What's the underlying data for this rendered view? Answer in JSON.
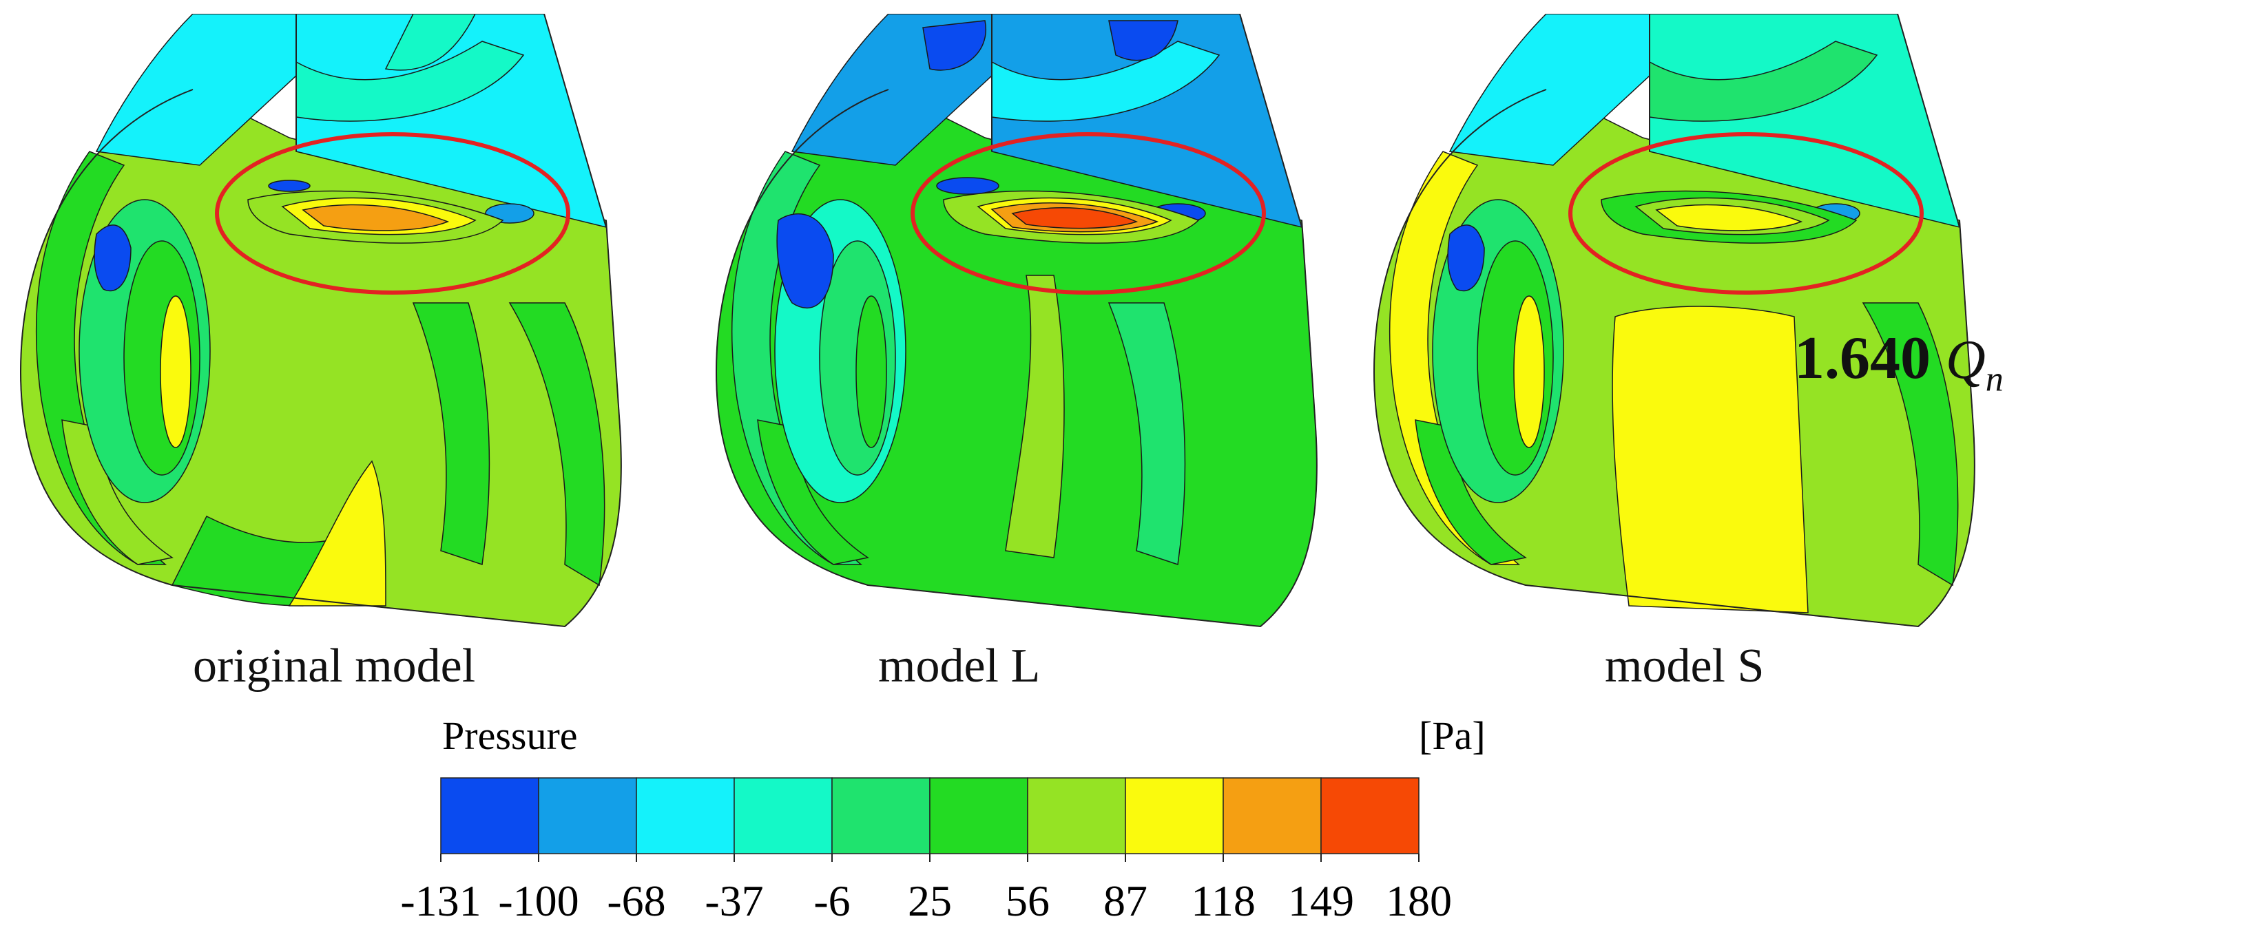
{
  "models": [
    {
      "id": "original",
      "caption": "original model",
      "peak_level": 9
    },
    {
      "id": "L",
      "caption": "model L",
      "peak_level": 10
    },
    {
      "id": "S",
      "caption": "model S",
      "peak_level": 8
    }
  ],
  "flow_rate": {
    "value": "1.640",
    "symbol": "Q",
    "subscript": "n"
  },
  "legend": {
    "title": "Pressure",
    "unit": "[Pa]",
    "ticks": [
      "-131",
      "-100",
      "-68",
      "-37",
      "-6",
      "25",
      "56",
      "87",
      "118",
      "149",
      "180"
    ],
    "colors": [
      "#0a4bf0",
      "#139fe8",
      "#14f2fb",
      "#14f9c7",
      "#1fe36e",
      "#23db23",
      "#95e324",
      "#fafa0d",
      "#f59f12",
      "#f64905"
    ]
  },
  "highlight_color": "#e32222"
}
